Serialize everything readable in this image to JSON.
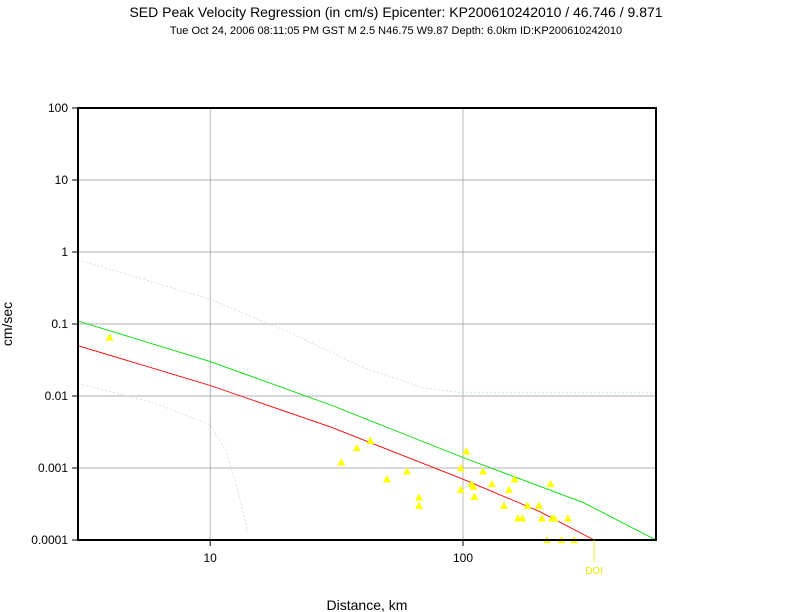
{
  "title": "SED Peak Velocity Regression (in cm/s) Epicenter: KP200610242010 / 46.746 / 9.871",
  "subtitle": "Tue Oct 24, 2006 08:11:05 PM GST    M 2.5    N46.75 W9.87    Depth: 6.0km    ID:KP200610242010",
  "colors": {
    "points": "#ffff00",
    "regression": "#ff0000",
    "fit_upper": "#00dd00",
    "bounds": "#c8e8c8",
    "doi": "#e8e800",
    "grid": "#999999"
  },
  "chart_data": {
    "type": "scatter",
    "xlabel": "Distance, km",
    "ylabel": "cm/sec",
    "xscale": "log",
    "yscale": "log",
    "xlim": [
      3,
      580
    ],
    "ylim": [
      0.0001,
      100
    ],
    "grid": true,
    "xticks": [
      {
        "value": 10,
        "label": "10"
      },
      {
        "value": 100,
        "label": "100"
      }
    ],
    "yticks": [
      {
        "value": 100,
        "label": "100"
      },
      {
        "value": 10,
        "label": "10"
      },
      {
        "value": 1,
        "label": "1"
      },
      {
        "value": 0.1,
        "label": "0.1"
      },
      {
        "value": 0.01,
        "label": "0.01"
      },
      {
        "value": 0.001,
        "label": "0.001"
      },
      {
        "value": 0.0001,
        "label": "0.0001"
      }
    ],
    "points": [
      [
        4.0,
        0.065
      ],
      [
        33,
        0.0012
      ],
      [
        38,
        0.0019
      ],
      [
        43,
        0.0024
      ],
      [
        50,
        0.0007
      ],
      [
        60,
        0.0009
      ],
      [
        67,
        0.00039
      ],
      [
        67,
        0.0003
      ],
      [
        98,
        0.001
      ],
      [
        98,
        0.0005
      ],
      [
        103,
        0.0017
      ],
      [
        108,
        0.0006
      ],
      [
        110,
        0.00055
      ],
      [
        111,
        0.0004
      ],
      [
        120,
        0.0009
      ],
      [
        130,
        0.0006
      ],
      [
        145,
        0.0003
      ],
      [
        152,
        0.0005
      ],
      [
        160,
        0.0007
      ],
      [
        165,
        0.0002
      ],
      [
        172,
        0.0002
      ],
      [
        180,
        0.0003
      ],
      [
        200,
        0.0003
      ],
      [
        205,
        0.0002
      ],
      [
        222,
        0.0006
      ],
      [
        225,
        0.0002
      ],
      [
        230,
        0.0002
      ],
      [
        260,
        0.0002
      ],
      [
        215,
        0.0001
      ],
      [
        245,
        0.0001
      ],
      [
        275,
        0.0001
      ]
    ],
    "lines": [
      {
        "role": "regression",
        "x": [
          3,
          10,
          30,
          100,
          200,
          330
        ],
        "y": [
          0.05,
          0.014,
          0.0037,
          0.0007,
          0.00025,
          0.0001
        ]
      },
      {
        "role": "fit_upper",
        "x": [
          3,
          10,
          30,
          100,
          300,
          580
        ],
        "y": [
          0.11,
          0.03,
          0.0075,
          0.0014,
          0.00033,
          0.0001
        ]
      },
      {
        "role": "bound_upper",
        "x": [
          3,
          10,
          20,
          40,
          70,
          100,
          300,
          580
        ],
        "y": [
          0.78,
          0.22,
          0.08,
          0.025,
          0.013,
          0.011,
          0.011,
          0.011
        ]
      },
      {
        "role": "bound_lower",
        "x": [
          3,
          6,
          10,
          11.5,
          12.5,
          13.5,
          14.1
        ],
        "y": [
          0.015,
          0.008,
          0.004,
          0.0018,
          0.0007,
          0.00025,
          0.00013
        ]
      }
    ],
    "doi": {
      "x": 330,
      "label": "DOI"
    }
  }
}
